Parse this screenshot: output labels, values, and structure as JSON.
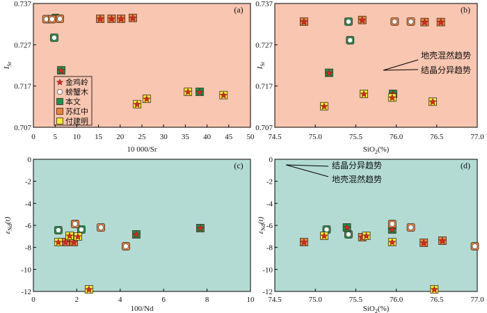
{
  "colors": {
    "star": "#d62a1e",
    "circle": "#ffffff",
    "marker_edge": "#3b2b1e"
  },
  "chart_data": [
    {
      "type": "scatter",
      "panel_label": "(a)",
      "background": "#f8c6b1",
      "xlabel": "10 000/Sr",
      "ylabel": {
        "base": "I",
        "sub": "Sr"
      },
      "xlim": [
        0,
        50
      ],
      "ylim": [
        0.707,
        0.737
      ],
      "xticks": [
        "0",
        "5",
        "10",
        "15",
        "20",
        "25",
        "30",
        "35",
        "40",
        "45",
        "50"
      ],
      "yticks": [
        "0.707",
        "0.717",
        "0.727",
        "0.737"
      ],
      "grid": false,
      "legend_position": "lower-left",
      "legend": [
        {
          "label": "金鸡岭",
          "symbol": "star",
          "color": "#d62a1e"
        },
        {
          "label": "螃蟹木",
          "symbol": "circle",
          "color": "#ffffff"
        },
        {
          "label": "本文",
          "symbol": "square",
          "color": "#22904f"
        },
        {
          "label": "苏红中",
          "symbol": "square",
          "color": "#e8833f"
        },
        {
          "label": "付建明",
          "symbol": "square",
          "color": "#f6ea3a"
        }
      ],
      "series": [
        {
          "square_color": "#22904f",
          "inner_symbol": "circle",
          "points": [
            [
              5.1,
              0.7335
            ],
            [
              4.8,
              0.7287
            ]
          ]
        },
        {
          "square_color": "#22904f",
          "inner_symbol": "star",
          "points": [
            [
              6.4,
              0.7208
            ],
            [
              38.3,
              0.7156
            ]
          ]
        },
        {
          "square_color": "#e8833f",
          "inner_symbol": "circle",
          "points": [
            [
              3.0,
              0.7332
            ],
            [
              4.3,
              0.7332
            ],
            [
              6.1,
              0.7333
            ]
          ]
        },
        {
          "square_color": "#e8833f",
          "inner_symbol": "star",
          "points": [
            [
              15.4,
              0.7333
            ],
            [
              18.0,
              0.7333
            ],
            [
              20.2,
              0.7333
            ],
            [
              22.9,
              0.7335
            ]
          ]
        },
        {
          "square_color": "#f6ea3a",
          "inner_symbol": "star",
          "points": [
            [
              23.9,
              0.7126
            ],
            [
              26.1,
              0.7139
            ],
            [
              35.6,
              0.7156
            ],
            [
              43.8,
              0.7148
            ]
          ]
        }
      ]
    },
    {
      "type": "scatter",
      "panel_label": "(b)",
      "background": "#f8c6b1",
      "xlabel": {
        "base": "SiO",
        "sub": "2",
        "suffix": "(%)"
      },
      "ylabel": {
        "base": "I",
        "sub": "Sr"
      },
      "xlim": [
        74.5,
        77.0
      ],
      "ylim": [
        0.707,
        0.737
      ],
      "xticks": [
        "74.5",
        "75.0",
        "75.5",
        "76.0",
        "76.5",
        "77.0"
      ],
      "yticks": [
        "0.707",
        "0.717",
        "0.727",
        "0.737"
      ],
      "grid": false,
      "annotations": [
        {
          "text": "地壳混然趋势"
        },
        {
          "text": "结晶分异趋势"
        }
      ],
      "series": [
        {
          "square_color": "#22904f",
          "inner_symbol": "circle",
          "points": [
            [
              75.41,
              0.7326
            ],
            [
              75.43,
              0.7281
            ]
          ]
        },
        {
          "square_color": "#22904f",
          "inner_symbol": "star",
          "points": [
            [
              75.17,
              0.7202
            ],
            [
              75.96,
              0.7151
            ]
          ]
        },
        {
          "square_color": "#e8833f",
          "inner_symbol": "circle",
          "points": [
            [
              75.98,
              0.7326
            ],
            [
              76.18,
              0.7326
            ]
          ]
        },
        {
          "square_color": "#e8833f",
          "inner_symbol": "star",
          "points": [
            [
              74.86,
              0.7326
            ],
            [
              75.58,
              0.733
            ],
            [
              76.35,
              0.7325
            ],
            [
              76.55,
              0.7325
            ]
          ]
        },
        {
          "square_color": "#f6ea3a",
          "inner_symbol": "star",
          "points": [
            [
              75.6,
              0.7151
            ],
            [
              75.95,
              0.7142
            ],
            [
              75.11,
              0.7121
            ],
            [
              76.45,
              0.7132
            ]
          ]
        }
      ]
    },
    {
      "type": "scatter",
      "panel_label": "(c)",
      "background": "#b3dbd4",
      "xlabel": "100/Nd",
      "ylabel": {
        "base": "ε",
        "sub": "Nd",
        "suffix": "(t)"
      },
      "xlim": [
        0,
        10
      ],
      "ylim": [
        -12,
        0
      ],
      "xticks": [
        "0",
        "2",
        "4",
        "6",
        "8",
        "10"
      ],
      "yticks": [
        "0",
        "-2",
        "-4",
        "-6",
        "-8",
        "-10",
        "-12"
      ],
      "grid": false,
      "series": [
        {
          "square_color": "#22904f",
          "inner_symbol": "circle",
          "points": [
            [
              1.15,
              -6.44
            ],
            [
              2.21,
              -6.38
            ]
          ]
        },
        {
          "square_color": "#22904f",
          "inner_symbol": "star",
          "points": [
            [
              4.74,
              -6.82
            ],
            [
              7.69,
              -6.25
            ]
          ]
        },
        {
          "square_color": "#e8833f",
          "inner_symbol": "circle",
          "points": [
            [
              1.92,
              -5.87
            ],
            [
              3.11,
              -6.19
            ],
            [
              4.26,
              -7.9
            ]
          ]
        },
        {
          "square_color": "#e8833f",
          "inner_symbol": "star",
          "points": [
            [
              1.47,
              -7.52
            ],
            [
              1.73,
              -7.07
            ],
            [
              1.82,
              -7.2
            ],
            [
              1.86,
              -7.52
            ]
          ]
        },
        {
          "square_color": "#f6ea3a",
          "inner_symbol": "star",
          "points": [
            [
              1.15,
              -7.52
            ],
            [
              1.67,
              -6.95
            ],
            [
              2.05,
              -7.01
            ],
            [
              2.56,
              -11.81
            ]
          ]
        }
      ]
    },
    {
      "type": "scatter",
      "panel_label": "(d)",
      "background": "#b3dbd4",
      "xlabel": {
        "base": "SiO",
        "sub": "2",
        "suffix": "(%)"
      },
      "ylabel": {
        "base": "ε",
        "sub": "Nd",
        "suffix": "(t)"
      },
      "xlim": [
        74.5,
        77.0
      ],
      "ylim": [
        -12,
        0
      ],
      "xticks": [
        "74.5",
        "75.0",
        "75.5",
        "76.0",
        "76.5",
        "77.0"
      ],
      "yticks": [
        "0",
        "-2",
        "-4",
        "-6",
        "-8",
        "-10",
        "-12"
      ],
      "grid": false,
      "annotations": [
        {
          "text": "结晶分异趋势"
        },
        {
          "text": "地壳混然趋势"
        }
      ],
      "series": [
        {
          "square_color": "#22904f",
          "inner_symbol": "circle",
          "points": [
            [
              75.14,
              -6.38
            ],
            [
              75.41,
              -6.82
            ]
          ]
        },
        {
          "square_color": "#22904f",
          "inner_symbol": "star",
          "points": [
            [
              75.39,
              -6.19
            ],
            [
              75.95,
              -6.38
            ]
          ]
        },
        {
          "square_color": "#e8833f",
          "inner_symbol": "circle",
          "points": [
            [
              75.95,
              -5.87
            ],
            [
              76.18,
              -6.19
            ],
            [
              76.97,
              -7.9
            ]
          ]
        },
        {
          "square_color": "#e8833f",
          "inner_symbol": "star",
          "points": [
            [
              74.86,
              -7.52
            ],
            [
              75.58,
              -7.07
            ],
            [
              76.34,
              -7.58
            ],
            [
              76.57,
              -7.39
            ]
          ]
        },
        {
          "square_color": "#f6ea3a",
          "inner_symbol": "star",
          "points": [
            [
              75.11,
              -6.95
            ],
            [
              75.63,
              -6.95
            ],
            [
              75.95,
              -7.52
            ],
            [
              76.47,
              -11.81
            ]
          ]
        }
      ]
    }
  ]
}
